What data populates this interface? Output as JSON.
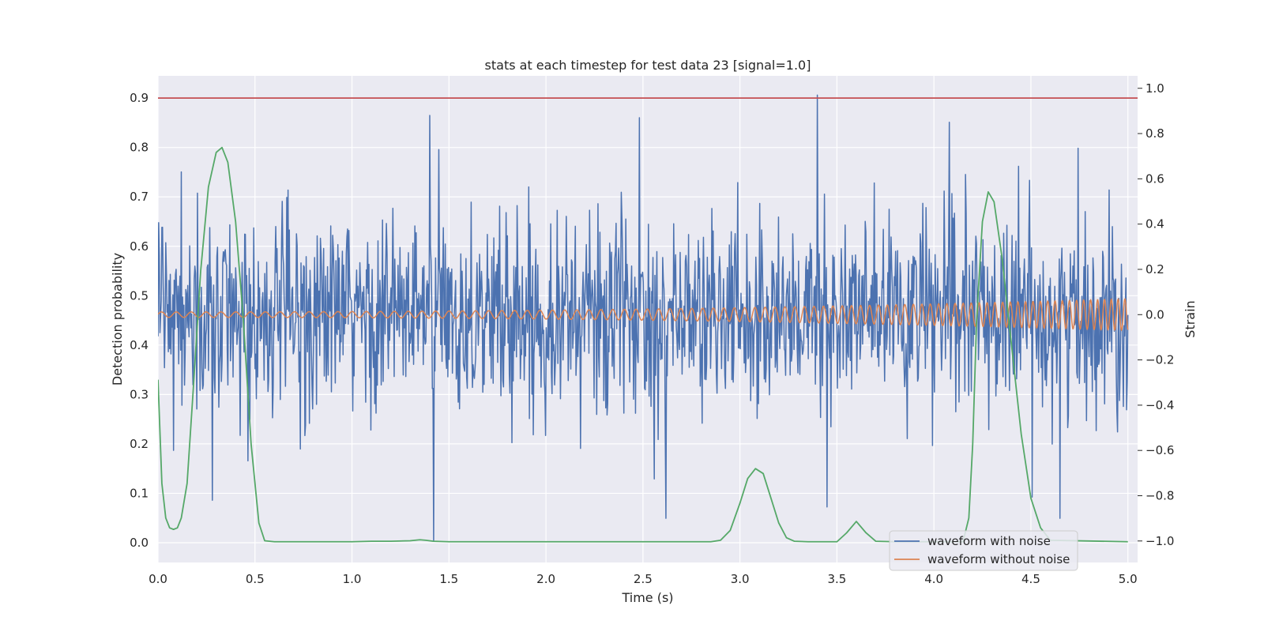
{
  "chart_data": {
    "type": "line",
    "title": "stats at each timestep for test data 23 [signal=1.0]",
    "xlabel": "Time (s)",
    "ylabel": "Detection probability",
    "y2label": "Strain",
    "xlim": [
      0.0,
      5.05
    ],
    "ylim": [
      -0.04,
      0.945
    ],
    "y2lim": [
      -1.095,
      1.055
    ],
    "x_ticks": [
      "0.0",
      "0.5",
      "1.0",
      "1.5",
      "2.0",
      "2.5",
      "3.0",
      "3.5",
      "4.0",
      "4.5",
      "5.0"
    ],
    "y_ticks": [
      "0.0",
      "0.1",
      "0.2",
      "0.3",
      "0.4",
      "0.5",
      "0.6",
      "0.7",
      "0.8",
      "0.9"
    ],
    "y2_ticks": [
      "−1.0",
      "−0.8",
      "−0.6",
      "−0.4",
      "−0.2",
      "0.0",
      "0.2",
      "0.4",
      "0.6",
      "0.8",
      "1.0"
    ],
    "threshold": 0.9,
    "grid": true,
    "legend_position": "lower-right",
    "colors": {
      "background": "#eaeaf2",
      "grid": "#ffffff",
      "noisy": "#4c72b0",
      "clean": "#dd8452",
      "probability": "#55a868",
      "threshold": "#c44e52"
    },
    "series": [
      {
        "name": "waveform with noise",
        "axis": "right",
        "description": "noisy strain, dense fluctuations roughly between -0.7 and 0.85",
        "amplitude_std": 0.22,
        "spikes": [
          [
            0.28,
            -0.82
          ],
          [
            1.4,
            0.88
          ],
          [
            1.42,
            -1.0
          ],
          [
            2.48,
            0.87
          ],
          [
            2.62,
            -0.9
          ],
          [
            3.4,
            0.97
          ],
          [
            3.45,
            -0.85
          ],
          [
            4.08,
            0.85
          ],
          [
            4.65,
            -0.9
          ],
          [
            0.08,
            -0.6
          ]
        ]
      },
      {
        "name": "waveform without noise",
        "axis": "right",
        "description": "clean chirp, amplitude growing from ~0.01 to ~0.07, frequency rising",
        "amplitude_range": [
          0.012,
          0.07
        ]
      },
      {
        "axis": "left",
        "description": "detection probability",
        "x": [
          0.0,
          0.02,
          0.04,
          0.06,
          0.08,
          0.1,
          0.12,
          0.15,
          0.18,
          0.22,
          0.26,
          0.3,
          0.33,
          0.36,
          0.4,
          0.44,
          0.48,
          0.52,
          0.55,
          0.6,
          1.0,
          1.1,
          1.2,
          1.3,
          1.35,
          1.38,
          1.42,
          1.5,
          1.8,
          2.5,
          2.85,
          2.9,
          2.95,
          3.0,
          3.04,
          3.08,
          3.12,
          3.16,
          3.2,
          3.24,
          3.28,
          3.35,
          3.5,
          3.55,
          3.6,
          3.65,
          3.7,
          3.8,
          4.0,
          4.15,
          4.18,
          4.2,
          4.22,
          4.25,
          4.28,
          4.31,
          4.35,
          4.4,
          4.45,
          4.5,
          4.55,
          4.6,
          5.0
        ],
        "y": [
          0.33,
          0.12,
          0.05,
          0.03,
          0.027,
          0.03,
          0.05,
          0.12,
          0.3,
          0.55,
          0.72,
          0.79,
          0.8,
          0.77,
          0.65,
          0.45,
          0.2,
          0.04,
          0.004,
          0.002,
          0.002,
          0.003,
          0.003,
          0.004,
          0.006,
          0.005,
          0.003,
          0.002,
          0.002,
          0.002,
          0.002,
          0.005,
          0.025,
          0.08,
          0.13,
          0.15,
          0.14,
          0.09,
          0.04,
          0.01,
          0.003,
          0.002,
          0.002,
          0.02,
          0.043,
          0.02,
          0.003,
          0.002,
          0.002,
          0.002,
          0.05,
          0.2,
          0.45,
          0.65,
          0.71,
          0.69,
          0.58,
          0.4,
          0.22,
          0.09,
          0.03,
          0.005,
          0.002
        ]
      }
    ]
  }
}
